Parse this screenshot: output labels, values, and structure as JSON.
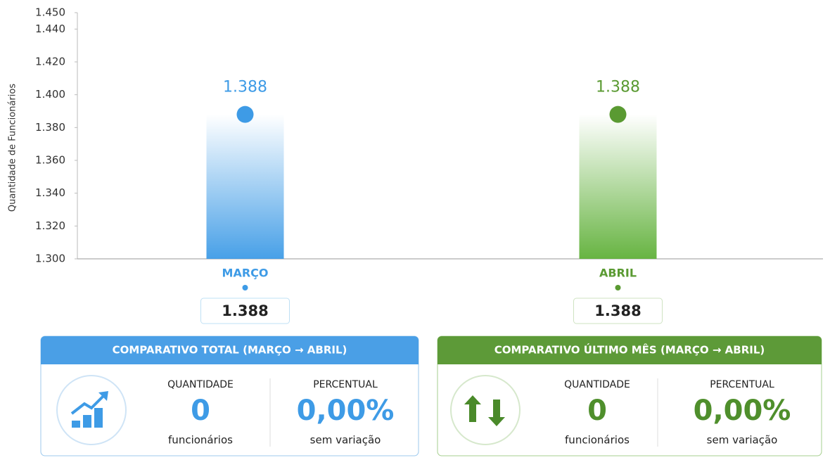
{
  "chart_data": {
    "type": "line",
    "y_label": "Quantidade de Funcionários",
    "categories": [
      "MARÇO",
      "ABRIL"
    ],
    "values": [
      1388,
      1388
    ],
    "value_labels": [
      "1.388",
      "1.388"
    ],
    "colors": [
      "#3e9be6",
      "#5a9a32"
    ],
    "ylim": [
      1300,
      1450
    ],
    "yticks": [
      {
        "value": 1300,
        "label": "1.300"
      },
      {
        "value": 1320,
        "label": "1.320"
      },
      {
        "value": 1340,
        "label": "1.340"
      },
      {
        "value": 1360,
        "label": "1.360"
      },
      {
        "value": 1380,
        "label": "1.380"
      },
      {
        "value": 1400,
        "label": "1.400"
      },
      {
        "value": 1420,
        "label": "1.420"
      },
      {
        "value": 1440,
        "label": "1.440"
      },
      {
        "value": 1450,
        "label": "1.450"
      }
    ]
  },
  "cards": [
    {
      "title": "COMPARATIVO TOTAL (MARÇO → ABRIL)",
      "quantity_label": "QUANTIDADE",
      "quantity": 0,
      "quantity_unit": "funcionários",
      "percent_label": "PERCENTUAL",
      "percent": "0,00%",
      "percent_note": "sem variação"
    },
    {
      "title": "COMPARATIVO ÚLTIMO MÊS (MARÇO → ABRIL)",
      "quantity_label": "QUANTIDADE",
      "quantity": 0,
      "quantity_unit": "funcionários",
      "percent_label": "PERCENTUAL",
      "percent": "0,00%",
      "percent_note": "sem variação"
    }
  ]
}
